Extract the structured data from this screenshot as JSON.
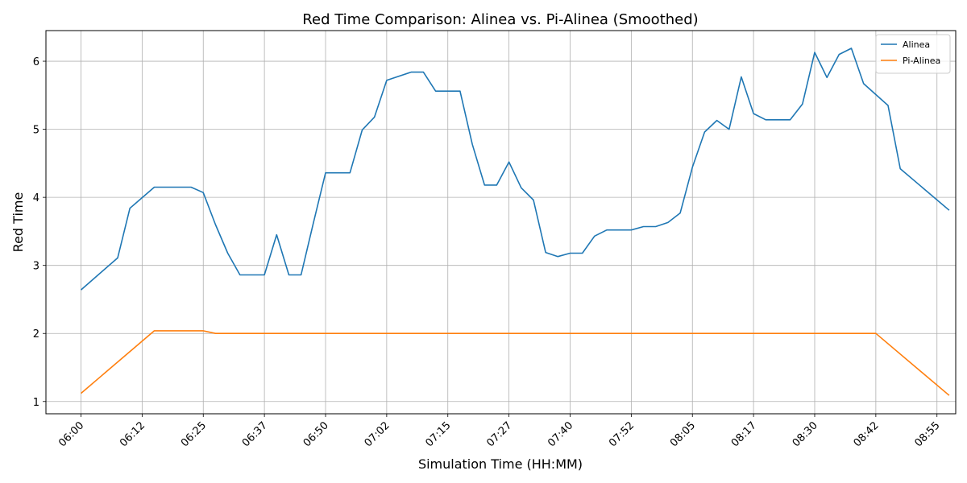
{
  "chart_data": {
    "type": "line",
    "title": "Red Time Comparison: Alinea vs. Pi-Alinea (Smoothed)",
    "xlabel": "Simulation Time (HH:MM)",
    "ylabel": "Red Time",
    "xlim": [
      -4.3,
      107.3
    ],
    "ylim": [
      0.82,
      6.45
    ],
    "y_ticks": [
      1,
      2,
      3,
      4,
      5,
      6
    ],
    "x_ticks": [
      {
        "x": 0,
        "label": "06:00"
      },
      {
        "x": 7.5,
        "label": "06:12"
      },
      {
        "x": 15,
        "label": "06:25"
      },
      {
        "x": 22.5,
        "label": "06:37"
      },
      {
        "x": 30,
        "label": "06:50"
      },
      {
        "x": 37.5,
        "label": "07:02"
      },
      {
        "x": 45,
        "label": "07:15"
      },
      {
        "x": 52.5,
        "label": "07:27"
      },
      {
        "x": 60,
        "label": "07:40"
      },
      {
        "x": 67.5,
        "label": "07:52"
      },
      {
        "x": 75,
        "label": "08:05"
      },
      {
        "x": 82.5,
        "label": "08:17"
      },
      {
        "x": 90,
        "label": "08:30"
      },
      {
        "x": 97.5,
        "label": "08:42"
      },
      {
        "x": 105,
        "label": "08:55"
      }
    ],
    "grid": true,
    "legend_position": "top-right",
    "series": [
      {
        "name": "Alinea",
        "color": "#1f77b4",
        "points": [
          [
            0,
            2.64
          ],
          [
            4.5,
            3.11
          ],
          [
            6,
            3.84
          ],
          [
            9,
            4.15
          ],
          [
            13.5,
            4.15
          ],
          [
            15,
            4.07
          ],
          [
            16.5,
            3.6
          ],
          [
            18,
            3.18
          ],
          [
            19.5,
            2.86
          ],
          [
            22.5,
            2.86
          ],
          [
            24,
            3.45
          ],
          [
            25.5,
            2.86
          ],
          [
            27,
            2.86
          ],
          [
            28.5,
            3.62
          ],
          [
            30,
            4.36
          ],
          [
            33,
            4.36
          ],
          [
            34.5,
            4.99
          ],
          [
            36,
            5.18
          ],
          [
            37.5,
            5.72
          ],
          [
            40.5,
            5.84
          ],
          [
            42,
            5.84
          ],
          [
            43.5,
            5.56
          ],
          [
            46.5,
            5.56
          ],
          [
            48,
            4.78
          ],
          [
            49.5,
            4.18
          ],
          [
            51,
            4.18
          ],
          [
            52.5,
            4.52
          ],
          [
            54,
            4.14
          ],
          [
            55.5,
            3.96
          ],
          [
            57,
            3.19
          ],
          [
            58.5,
            3.13
          ],
          [
            60,
            3.18
          ],
          [
            61.5,
            3.18
          ],
          [
            63,
            3.43
          ],
          [
            64.5,
            3.52
          ],
          [
            67.5,
            3.52
          ],
          [
            69,
            3.57
          ],
          [
            70.5,
            3.57
          ],
          [
            72,
            3.63
          ],
          [
            73.5,
            3.77
          ],
          [
            75,
            4.44
          ],
          [
            76.5,
            4.96
          ],
          [
            78,
            5.13
          ],
          [
            79.5,
            5.0
          ],
          [
            81,
            5.77
          ],
          [
            82.5,
            5.23
          ],
          [
            84,
            5.14
          ],
          [
            87,
            5.14
          ],
          [
            88.5,
            5.37
          ],
          [
            90,
            6.13
          ],
          [
            91.5,
            5.76
          ],
          [
            93,
            6.1
          ],
          [
            94.5,
            6.19
          ],
          [
            96,
            5.67
          ],
          [
            97.5,
            5.51
          ],
          [
            99,
            5.35
          ],
          [
            100.5,
            4.42
          ],
          [
            106.5,
            3.81
          ]
        ]
      },
      {
        "name": "Pi-Alinea",
        "color": "#ff7f0e",
        "points": [
          [
            0,
            1.12
          ],
          [
            9,
            2.04
          ],
          [
            15,
            2.04
          ],
          [
            16.5,
            2.0
          ],
          [
            97.5,
            2.0
          ],
          [
            106.5,
            1.09
          ]
        ]
      }
    ]
  }
}
